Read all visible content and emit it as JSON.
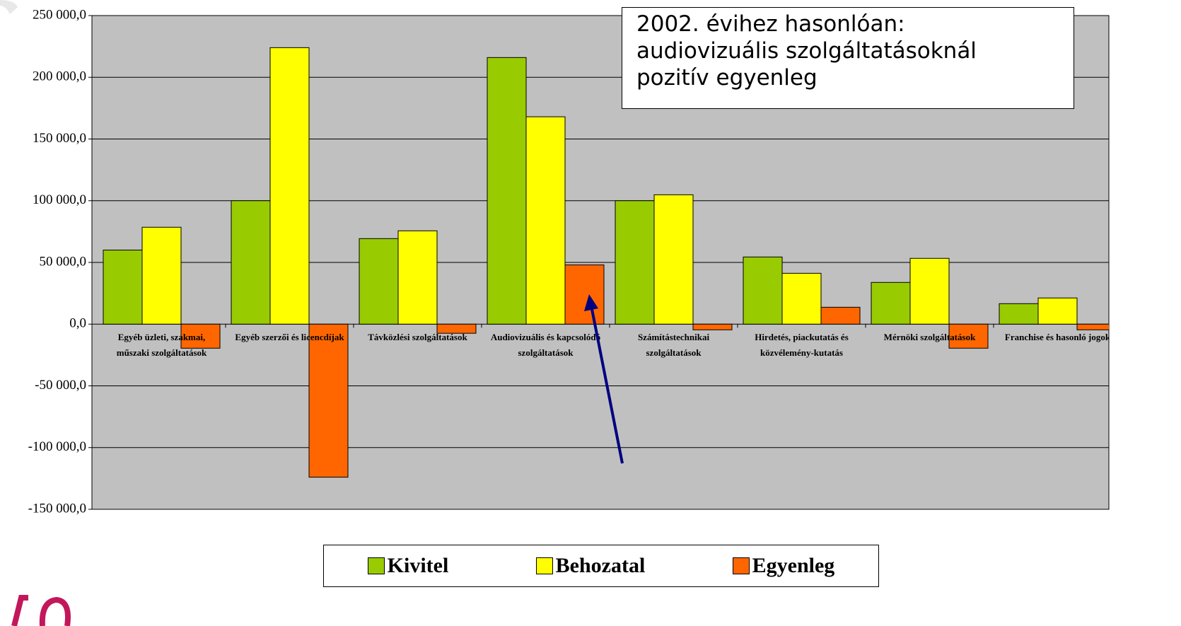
{
  "chart_data": {
    "type": "bar",
    "categories": [
      "Egyéb üzleti, szakmai, műszaki szolgáltatások",
      "Egyéb szerzői és licencdíjak",
      "Távközlési szolgáltatások",
      "Audiovizuális és kapcsolódó szolgáltatások",
      "Számítástechnikai szolgáltatások",
      "Hirdetés, piackutatás és közvélemény-kutatás",
      "Mérnöki szolgáltatások",
      "Franchise és hasonló jogok"
    ],
    "series": [
      {
        "name": "Kivitel",
        "color": "#99cc00",
        "values": [
          60000,
          100000,
          69300,
          216000,
          100000,
          54400,
          33800,
          16600
        ]
      },
      {
        "name": "Behozatal",
        "color": "#ffff00",
        "values": [
          78500,
          224000,
          75600,
          168000,
          104800,
          41200,
          53300,
          21200
        ]
      },
      {
        "name": "Egyenleg",
        "color": "#ff6600",
        "values": [
          -19500,
          -124000,
          -7400,
          48000,
          -4600,
          13700,
          -19500,
          -4600
        ]
      }
    ],
    "ylim": [
      -150000,
      250000
    ],
    "yticks": [
      {
        "value": -150000,
        "label": "-150 000,0"
      },
      {
        "value": -100000,
        "label": "-100 000,0"
      },
      {
        "value": -50000,
        "label": "-50 000,0"
      },
      {
        "value": 0,
        "label": "0,0"
      },
      {
        "value": 50000,
        "label": "50 000,0"
      },
      {
        "value": 100000,
        "label": "100 000,0"
      },
      {
        "value": 150000,
        "label": "150 000,0"
      },
      {
        "value": 200000,
        "label": "200 000,0"
      },
      {
        "value": 250000,
        "label": "250 000,0"
      }
    ],
    "grid": true,
    "annotation": [
      "2002. évihez hasonlóan:",
      "audiovizuális szolgáltatásoknál",
      "pozitív egyenleg"
    ]
  }
}
